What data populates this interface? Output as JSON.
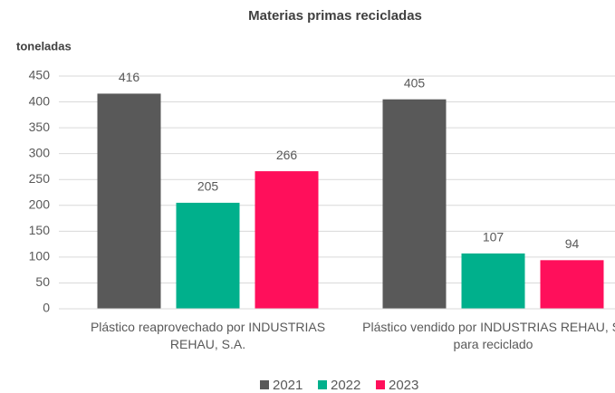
{
  "chart_data": {
    "type": "bar",
    "title": "Materias primas recicladas",
    "y_label": "toneladas",
    "categories": [
      "Plástico reaprovechado por INDUSTRIAS REHAU, S.A.",
      "Plástico vendido por INDUSTRIAS REHAU, S. para reciclado"
    ],
    "series": [
      {
        "name": "2021",
        "color": "#595959",
        "values": [
          416,
          405
        ]
      },
      {
        "name": "2022",
        "color": "#00b08c",
        "values": [
          205,
          107
        ]
      },
      {
        "name": "2023",
        "color": "#ff0f5b",
        "values": [
          266,
          94
        ]
      }
    ],
    "ylim": [
      0,
      450
    ],
    "yticks": [
      0,
      50,
      100,
      150,
      200,
      250,
      300,
      350,
      400,
      450
    ],
    "grid": true,
    "legend": "bottom"
  }
}
